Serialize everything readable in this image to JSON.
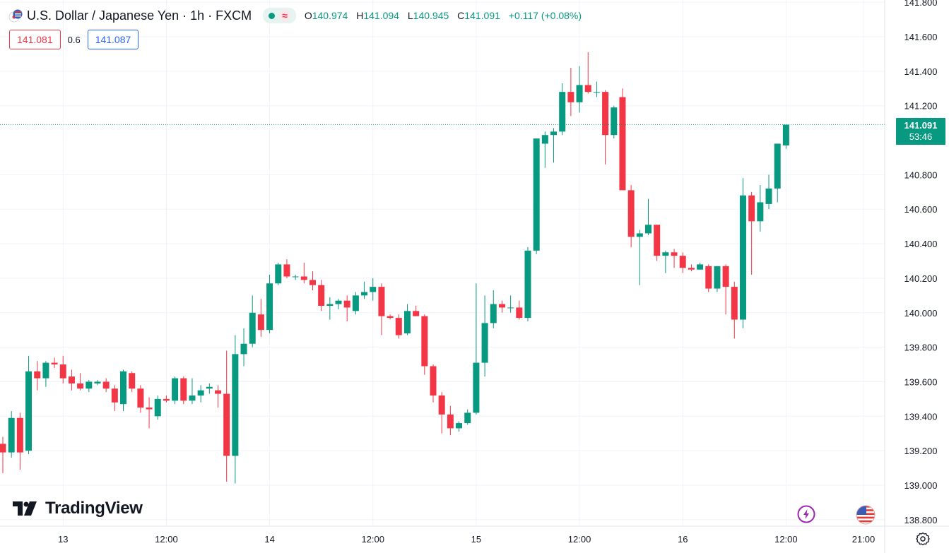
{
  "symbol": {
    "title": "U.S. Dollar / Japanese Yen · 1h · FXCM",
    "status_icon": "market-open-dot",
    "wave_icon": "≈"
  },
  "ohlc": {
    "o_label": "O",
    "o": "140.974",
    "h_label": "H",
    "h": "141.094",
    "l_label": "L",
    "l": "140.945",
    "c_label": "C",
    "c": "141.091",
    "change": "+0.117 (+0.08%)"
  },
  "quotes": {
    "bid": "141.081",
    "spread": "0.6",
    "ask": "141.087"
  },
  "last_price": {
    "price": "141.091",
    "countdown": "53:46"
  },
  "branding": {
    "logo_text": "TradingView"
  },
  "colors": {
    "up": "#089981",
    "down": "#f23645",
    "grid": "#f0f3fa",
    "text": "#131722"
  },
  "icons": {
    "bolt": "lightning-icon",
    "flag": "us-flag-icon",
    "settings": "gear-icon"
  },
  "chart_data": {
    "type": "candlestick",
    "title": "U.S. Dollar / Japanese Yen · 1h · FXCM",
    "y_axis": {
      "ticks": [
        "141.800",
        "141.600",
        "141.400",
        "141.200",
        "140.800",
        "140.600",
        "140.400",
        "140.200",
        "140.000",
        "139.800",
        "139.600",
        "139.400",
        "139.200",
        "139.000",
        "138.800"
      ],
      "range": [
        138.78,
        141.82
      ]
    },
    "x_axis": {
      "ticks": [
        {
          "label": "13",
          "bar": 7
        },
        {
          "label": "12:00",
          "bar": 19
        },
        {
          "label": "14",
          "bar": 31
        },
        {
          "label": "12:00",
          "bar": 43
        },
        {
          "label": "15",
          "bar": 55
        },
        {
          "label": "12:00",
          "bar": 67
        },
        {
          "label": "16",
          "bar": 79
        },
        {
          "label": "12:00",
          "bar": 91
        },
        {
          "label": "21:00",
          "bar": 100
        }
      ]
    },
    "last_price_line": 141.091,
    "candles": [
      {
        "o": 139.24,
        "h": 139.28,
        "l": 139.07,
        "c": 139.19
      },
      {
        "o": 139.19,
        "h": 139.43,
        "l": 139.16,
        "c": 139.39
      },
      {
        "o": 139.39,
        "h": 139.42,
        "l": 139.09,
        "c": 139.19
      },
      {
        "o": 139.2,
        "h": 139.75,
        "l": 139.18,
        "c": 139.66
      },
      {
        "o": 139.66,
        "h": 139.72,
        "l": 139.55,
        "c": 139.62
      },
      {
        "o": 139.62,
        "h": 139.72,
        "l": 139.57,
        "c": 139.71
      },
      {
        "o": 139.71,
        "h": 139.74,
        "l": 139.68,
        "c": 139.7
      },
      {
        "o": 139.7,
        "h": 139.75,
        "l": 139.59,
        "c": 139.62
      },
      {
        "o": 139.63,
        "h": 139.67,
        "l": 139.55,
        "c": 139.59
      },
      {
        "o": 139.59,
        "h": 139.65,
        "l": 139.55,
        "c": 139.56
      },
      {
        "o": 139.56,
        "h": 139.61,
        "l": 139.54,
        "c": 139.6
      },
      {
        "o": 139.59,
        "h": 139.61,
        "l": 139.58,
        "c": 139.6
      },
      {
        "o": 139.6,
        "h": 139.62,
        "l": 139.54,
        "c": 139.56
      },
      {
        "o": 139.56,
        "h": 139.58,
        "l": 139.43,
        "c": 139.48
      },
      {
        "o": 139.47,
        "h": 139.67,
        "l": 139.43,
        "c": 139.66
      },
      {
        "o": 139.65,
        "h": 139.66,
        "l": 139.54,
        "c": 139.56
      },
      {
        "o": 139.56,
        "h": 139.58,
        "l": 139.42,
        "c": 139.45
      },
      {
        "o": 139.45,
        "h": 139.51,
        "l": 139.33,
        "c": 139.44
      },
      {
        "o": 139.4,
        "h": 139.52,
        "l": 139.38,
        "c": 139.5
      },
      {
        "o": 139.5,
        "h": 139.52,
        "l": 139.48,
        "c": 139.49
      },
      {
        "o": 139.49,
        "h": 139.63,
        "l": 139.47,
        "c": 139.62
      },
      {
        "o": 139.62,
        "h": 139.63,
        "l": 139.47,
        "c": 139.49
      },
      {
        "o": 139.49,
        "h": 139.62,
        "l": 139.47,
        "c": 139.52
      },
      {
        "o": 139.52,
        "h": 139.58,
        "l": 139.48,
        "c": 139.55
      },
      {
        "o": 139.56,
        "h": 139.59,
        "l": 139.53,
        "c": 139.57
      },
      {
        "o": 139.55,
        "h": 139.58,
        "l": 139.45,
        "c": 139.53
      },
      {
        "o": 139.53,
        "h": 139.78,
        "l": 139.02,
        "c": 139.17
      },
      {
        "o": 139.17,
        "h": 139.87,
        "l": 139.01,
        "c": 139.76
      },
      {
        "o": 139.76,
        "h": 139.91,
        "l": 139.69,
        "c": 139.82
      },
      {
        "o": 139.82,
        "h": 140.1,
        "l": 139.8,
        "c": 140.0
      },
      {
        "o": 139.99,
        "h": 140.08,
        "l": 139.86,
        "c": 139.9
      },
      {
        "o": 139.9,
        "h": 140.22,
        "l": 139.88,
        "c": 140.17
      },
      {
        "o": 140.17,
        "h": 140.29,
        "l": 140.16,
        "c": 140.28
      },
      {
        "o": 140.28,
        "h": 140.31,
        "l": 140.2,
        "c": 140.21
      },
      {
        "o": 140.21,
        "h": 140.22,
        "l": 140.19,
        "c": 140.21
      },
      {
        "o": 140.21,
        "h": 140.29,
        "l": 140.17,
        "c": 140.19
      },
      {
        "o": 140.19,
        "h": 140.24,
        "l": 140.13,
        "c": 140.16
      },
      {
        "o": 140.16,
        "h": 140.19,
        "l": 140.01,
        "c": 140.04
      },
      {
        "o": 140.04,
        "h": 140.09,
        "l": 139.96,
        "c": 140.05
      },
      {
        "o": 140.05,
        "h": 140.08,
        "l": 140.02,
        "c": 140.07
      },
      {
        "o": 140.07,
        "h": 140.1,
        "l": 139.95,
        "c": 140.03
      },
      {
        "o": 140.01,
        "h": 140.12,
        "l": 139.99,
        "c": 140.1
      },
      {
        "o": 140.1,
        "h": 140.18,
        "l": 140.08,
        "c": 140.12
      },
      {
        "o": 140.12,
        "h": 140.2,
        "l": 140.07,
        "c": 140.15
      },
      {
        "o": 140.15,
        "h": 140.17,
        "l": 139.87,
        "c": 139.98
      },
      {
        "o": 139.98,
        "h": 139.99,
        "l": 139.96,
        "c": 139.97
      },
      {
        "o": 139.97,
        "h": 139.99,
        "l": 139.85,
        "c": 139.87
      },
      {
        "o": 139.88,
        "h": 140.05,
        "l": 139.87,
        "c": 140.01
      },
      {
        "o": 140.01,
        "h": 140.04,
        "l": 139.98,
        "c": 139.98
      },
      {
        "o": 139.98,
        "h": 139.99,
        "l": 139.64,
        "c": 139.69
      },
      {
        "o": 139.69,
        "h": 139.7,
        "l": 139.48,
        "c": 139.52
      },
      {
        "o": 139.52,
        "h": 139.54,
        "l": 139.3,
        "c": 139.41
      },
      {
        "o": 139.41,
        "h": 139.46,
        "l": 139.29,
        "c": 139.33
      },
      {
        "o": 139.33,
        "h": 139.37,
        "l": 139.31,
        "c": 139.36
      },
      {
        "o": 139.36,
        "h": 139.44,
        "l": 139.35,
        "c": 139.42
      },
      {
        "o": 139.42,
        "h": 140.17,
        "l": 139.41,
        "c": 139.71
      },
      {
        "o": 139.71,
        "h": 140.1,
        "l": 139.63,
        "c": 139.94
      },
      {
        "o": 139.94,
        "h": 140.13,
        "l": 139.91,
        "c": 140.05
      },
      {
        "o": 140.05,
        "h": 140.07,
        "l": 140.0,
        "c": 140.03
      },
      {
        "o": 140.03,
        "h": 140.1,
        "l": 140.0,
        "c": 140.03
      },
      {
        "o": 140.03,
        "h": 140.07,
        "l": 139.96,
        "c": 139.97
      },
      {
        "o": 139.97,
        "h": 140.38,
        "l": 139.95,
        "c": 140.36
      },
      {
        "o": 140.36,
        "h": 141.0,
        "l": 140.34,
        "c": 141.01
      },
      {
        "o": 140.98,
        "h": 141.05,
        "l": 140.84,
        "c": 141.03
      },
      {
        "o": 141.03,
        "h": 141.07,
        "l": 140.87,
        "c": 141.05
      },
      {
        "o": 141.05,
        "h": 141.33,
        "l": 141.03,
        "c": 141.28
      },
      {
        "o": 141.28,
        "h": 141.42,
        "l": 141.14,
        "c": 141.22
      },
      {
        "o": 141.22,
        "h": 141.43,
        "l": 141.16,
        "c": 141.32
      },
      {
        "o": 141.32,
        "h": 141.51,
        "l": 141.27,
        "c": 141.28
      },
      {
        "o": 141.28,
        "h": 141.34,
        "l": 141.25,
        "c": 141.28
      },
      {
        "o": 141.28,
        "h": 141.29,
        "l": 140.86,
        "c": 141.03
      },
      {
        "o": 141.03,
        "h": 141.2,
        "l": 141.01,
        "c": 141.19
      },
      {
        "o": 141.25,
        "h": 141.3,
        "l": 140.73,
        "c": 140.71
      },
      {
        "o": 140.71,
        "h": 140.74,
        "l": 140.38,
        "c": 140.44
      },
      {
        "o": 140.44,
        "h": 140.48,
        "l": 140.16,
        "c": 140.46
      },
      {
        "o": 140.46,
        "h": 140.66,
        "l": 140.45,
        "c": 140.51
      },
      {
        "o": 140.51,
        "h": 140.51,
        "l": 140.3,
        "c": 140.33
      },
      {
        "o": 140.33,
        "h": 140.36,
        "l": 140.23,
        "c": 140.35
      },
      {
        "o": 140.35,
        "h": 140.37,
        "l": 140.26,
        "c": 140.33
      },
      {
        "o": 140.33,
        "h": 140.35,
        "l": 140.23,
        "c": 140.26
      },
      {
        "o": 140.26,
        "h": 140.28,
        "l": 140.24,
        "c": 140.25
      },
      {
        "o": 140.25,
        "h": 140.29,
        "l": 140.25,
        "c": 140.28
      },
      {
        "o": 140.27,
        "h": 140.28,
        "l": 140.12,
        "c": 140.14
      },
      {
        "o": 140.14,
        "h": 140.27,
        "l": 140.12,
        "c": 140.27
      },
      {
        "o": 140.27,
        "h": 140.28,
        "l": 139.99,
        "c": 140.15
      },
      {
        "o": 140.15,
        "h": 140.18,
        "l": 139.85,
        "c": 139.96
      },
      {
        "o": 139.96,
        "h": 140.78,
        "l": 139.91,
        "c": 140.68
      },
      {
        "o": 140.68,
        "h": 140.7,
        "l": 140.22,
        "c": 140.53
      },
      {
        "o": 140.53,
        "h": 140.74,
        "l": 140.47,
        "c": 140.64
      },
      {
        "o": 140.63,
        "h": 140.8,
        "l": 140.6,
        "c": 140.72
      },
      {
        "o": 140.72,
        "h": 140.98,
        "l": 140.64,
        "c": 140.98
      },
      {
        "o": 140.97,
        "h": 141.09,
        "l": 140.95,
        "c": 141.09
      }
    ]
  }
}
